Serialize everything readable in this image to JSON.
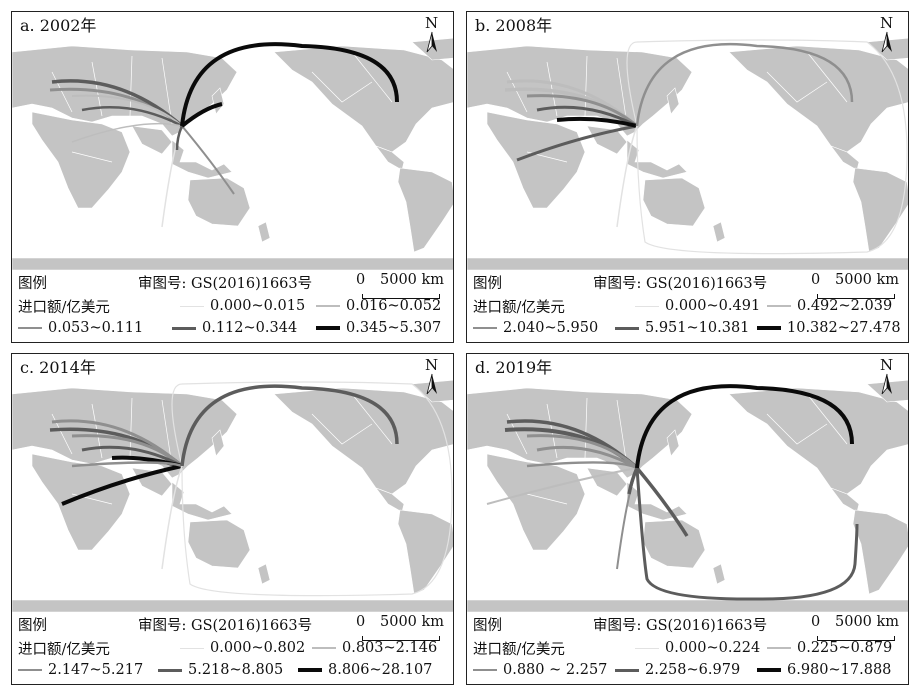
{
  "colors": {
    "land": "#c4c4c4",
    "coast": "#ffffff",
    "border": "#ffffff",
    "class1": "#e2e2e2",
    "class2": "#bdbdbd",
    "class3": "#8f8f8f",
    "class4": "#5c5c5c",
    "class5": "#0a0a0a"
  },
  "north_label": "N",
  "scale": {
    "zero": "0",
    "value": "5000 km"
  },
  "legend_title": "图例",
  "review_number": "审图号: GS(2016)1663号",
  "unit_label": "进口额/亿美元",
  "panels": [
    {
      "title": "a. 2002年",
      "classes": [
        "0.000~0.015",
        "0.016~0.052",
        "0.053~0.111",
        "0.112~0.344",
        "0.345~5.307"
      ]
    },
    {
      "title": "b. 2008年",
      "classes": [
        "0.000~0.491",
        "0.492~2.039",
        "2.040~5.950",
        "5.951~10.381",
        "10.382~27.478"
      ]
    },
    {
      "title": "c. 2014年",
      "classes": [
        "0.000~0.802",
        "0.803~2.146",
        "2.147~5.217",
        "5.218~8.805",
        "8.806~28.107"
      ]
    },
    {
      "title": "d. 2019年",
      "classes": [
        "0.000~0.224",
        "0.225~0.879",
        "0.880 ~ 2.257",
        "2.258~6.979",
        "6.980~17.888"
      ]
    }
  ]
}
